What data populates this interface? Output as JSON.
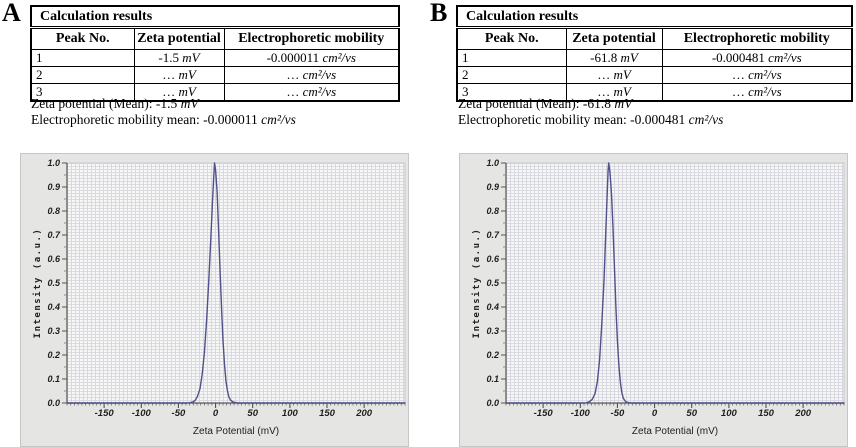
{
  "figure": {
    "panel_a": {
      "label": "A",
      "table": {
        "title": "Calculation results",
        "columns": [
          "Peak No.",
          "Zeta potential",
          "Electrophoretic mobility"
        ],
        "rows": [
          {
            "peak": "1",
            "zeta_value": "-1.5",
            "zeta_unit": "mV",
            "mobility_value": "-0.000011",
            "mobility_unit": "cm²/vs"
          },
          {
            "peak": "2",
            "zeta_value": "…",
            "zeta_unit": "mV",
            "mobility_value": "…",
            "mobility_unit": "cm²/vs"
          },
          {
            "peak": "3",
            "zeta_value": "…",
            "zeta_unit": "mV",
            "mobility_value": "…",
            "mobility_unit": "cm²/vs"
          }
        ]
      },
      "summary": {
        "zeta_label": "Zeta potential (Mean):",
        "zeta_value": "-1.5",
        "zeta_unit": "mV",
        "mobility_label": "Electrophoretic mobility mean:",
        "mobility_value": "-0.000011",
        "mobility_unit": "cm²/vs"
      }
    },
    "panel_b": {
      "label": "B",
      "table": {
        "title": "Calculation results",
        "columns": [
          "Peak No.",
          "Zeta potential",
          "Electrophoretic mobility"
        ],
        "rows": [
          {
            "peak": "1",
            "zeta_value": "-61.8",
            "zeta_unit": "mV",
            "mobility_value": "-0.000481",
            "mobility_unit": "cm²/vs"
          },
          {
            "peak": "2",
            "zeta_value": "…",
            "zeta_unit": "mV",
            "mobility_value": "…",
            "mobility_unit": "cm²/vs"
          },
          {
            "peak": "3",
            "zeta_value": "…",
            "zeta_unit": "mV",
            "mobility_value": "…",
            "mobility_unit": "cm²/vs"
          }
        ]
      },
      "summary": {
        "zeta_label": "Zeta potential (Mean):",
        "zeta_value": "-61.8",
        "zeta_unit": "mV",
        "mobility_label": "Electrophoretic mobility mean:",
        "mobility_value": "-0.000481",
        "mobility_unit": "cm²/vs"
      }
    }
  },
  "chart_data": [
    {
      "id": "a",
      "panel": "A",
      "type": "line",
      "title": "",
      "xlabel": "Zeta Potential (mV)",
      "ylabel": "Intensity (a.u.)",
      "xlim": [
        -200,
        255
      ],
      "ylim": [
        0,
        1.0
      ],
      "xticks": [
        -150,
        -100,
        -50,
        0,
        50,
        100,
        150,
        200
      ],
      "yticks": [
        0.0,
        0.1,
        0.2,
        0.3,
        0.4,
        0.5,
        0.6,
        0.7,
        0.8,
        0.9,
        1.0
      ],
      "grid": true,
      "legend": null,
      "line_color": "#50508a",
      "peak_center_mV": -1.5,
      "peak_height": 1.0,
      "series": [
        {
          "name": "intensity",
          "points": [
            [
              -200,
              0
            ],
            [
              -60,
              0
            ],
            [
              -40,
              0
            ],
            [
              -35,
              0.001
            ],
            [
              -30,
              0.005
            ],
            [
              -27,
              0.013
            ],
            [
              -24,
              0.03
            ],
            [
              -21,
              0.06
            ],
            [
              -18,
              0.12
            ],
            [
              -15,
              0.21
            ],
            [
              -12,
              0.35
            ],
            [
              -9,
              0.52
            ],
            [
              -6,
              0.71
            ],
            [
              -4,
              0.85
            ],
            [
              -2,
              0.97
            ],
            [
              -1.5,
              1.0
            ],
            [
              0,
              0.97
            ],
            [
              2,
              0.88
            ],
            [
              4,
              0.73
            ],
            [
              6,
              0.56
            ],
            [
              8,
              0.4
            ],
            [
              10,
              0.26
            ],
            [
              12,
              0.16
            ],
            [
              14,
              0.09
            ],
            [
              16,
              0.05
            ],
            [
              18,
              0.025
            ],
            [
              20,
              0.013
            ],
            [
              23,
              0.005
            ],
            [
              26,
              0.002
            ],
            [
              30,
              0
            ],
            [
              255,
              0
            ]
          ]
        }
      ]
    },
    {
      "id": "b",
      "panel": "B",
      "type": "line",
      "title": "",
      "xlabel": "Zeta Potential (mV)",
      "ylabel": "Intensity (a.u.)",
      "xlim": [
        -200,
        255
      ],
      "ylim": [
        0,
        1.0
      ],
      "xticks": [
        -150,
        -100,
        -50,
        0,
        50,
        100,
        150,
        200
      ],
      "yticks": [
        0.0,
        0.1,
        0.2,
        0.3,
        0.4,
        0.5,
        0.6,
        0.7,
        0.8,
        0.9,
        1.0
      ],
      "grid": true,
      "legend": null,
      "line_color": "#50508a",
      "peak_center_mV": -61.8,
      "peak_height": 1.0,
      "series": [
        {
          "name": "intensity",
          "points": [
            [
              -200,
              0
            ],
            [
              -100,
              0
            ],
            [
              -92,
              0.001
            ],
            [
              -88,
              0.005
            ],
            [
              -84,
              0.015
            ],
            [
              -80,
              0.04
            ],
            [
              -77,
              0.09
            ],
            [
              -74,
              0.18
            ],
            [
              -71,
              0.33
            ],
            [
              -68,
              0.52
            ],
            [
              -66,
              0.68
            ],
            [
              -64,
              0.85
            ],
            [
              -62.5,
              0.97
            ],
            [
              -61.8,
              1.0
            ],
            [
              -60,
              0.96
            ],
            [
              -58,
              0.87
            ],
            [
              -56,
              0.73
            ],
            [
              -54,
              0.56
            ],
            [
              -52,
              0.4
            ],
            [
              -50,
              0.26
            ],
            [
              -48,
              0.155
            ],
            [
              -46,
              0.085
            ],
            [
              -44,
              0.042
            ],
            [
              -42,
              0.019
            ],
            [
              -39,
              0.006
            ],
            [
              -36,
              0.002
            ],
            [
              -32,
              0
            ],
            [
              255,
              0
            ]
          ]
        }
      ]
    }
  ]
}
